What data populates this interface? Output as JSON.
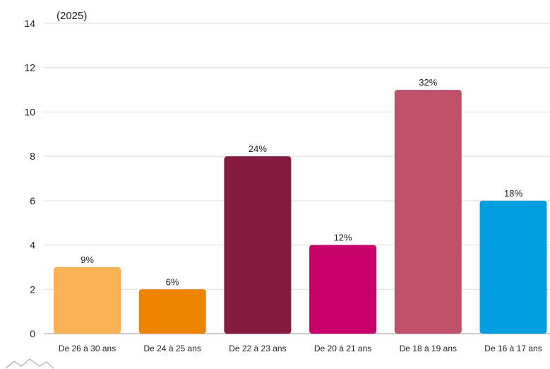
{
  "chart_data": {
    "type": "bar",
    "title": "",
    "subtitle": "(2025)",
    "xlabel": "",
    "ylabel": "",
    "ylim": [
      0,
      14
    ],
    "yticks": [
      0,
      2,
      4,
      6,
      8,
      10,
      12,
      14
    ],
    "grid": true,
    "categories": [
      "De 26 à 30 ans",
      "De 24 à 25 ans",
      "De 22 à 23 ans",
      "De 20 à 21 ans",
      "De 18 à 19 ans",
      "De 16 à 17 ans"
    ],
    "values": [
      3,
      2,
      8,
      4,
      11,
      6
    ],
    "data_labels": [
      "9%",
      "6%",
      "24%",
      "12%",
      "32%",
      "18%"
    ],
    "colors": [
      "#F9B256",
      "#EC8400",
      "#851C40",
      "#C8006A",
      "#BF516A",
      "#039EE0"
    ]
  }
}
